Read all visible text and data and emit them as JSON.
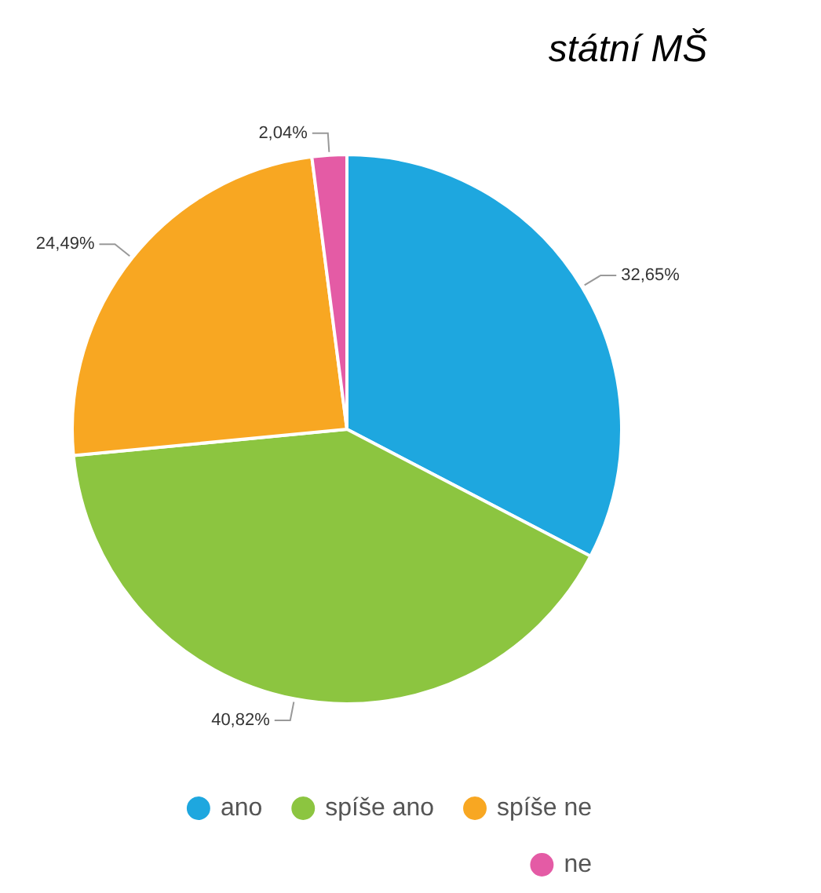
{
  "chart_data": {
    "type": "pie",
    "title": "státní MŠ",
    "categories": [
      "ano",
      "spíše ano",
      "spíše ne",
      "ne"
    ],
    "values": [
      32.65,
      40.82,
      24.49,
      2.04
    ],
    "value_labels": [
      "32,65%",
      "40,82%",
      "24,49%",
      "2,04%"
    ],
    "colors": [
      "#1ea7df",
      "#8cc540",
      "#f8a722",
      "#e45ba5"
    ],
    "legend": "bottom right"
  }
}
